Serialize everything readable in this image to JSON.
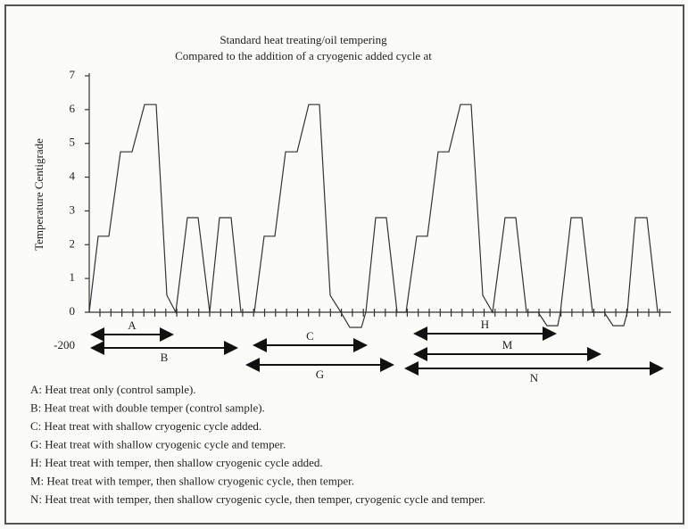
{
  "chart_data": {
    "type": "line",
    "title": "Standard heat treating/oil tempering",
    "subtitle": "Compared to the addition of a cryogenic added cycle at",
    "y_label": "Temperature Centigrade",
    "ylim": [
      0,
      7
    ],
    "yticks": [
      0,
      1,
      2,
      3,
      4,
      5,
      6,
      7
    ],
    "xlim": [
      0,
      65
    ],
    "annotation": "-200",
    "series": [
      {
        "color": "#333333",
        "x": [
          0,
          1,
          2.2,
          3.5,
          4.8,
          6.2,
          7.5,
          8.7,
          9.7,
          11,
          12.2,
          13.5,
          14.6,
          15.9,
          17,
          18.5,
          19.6,
          20.8,
          22,
          23.3,
          24.6,
          25.8,
          27,
          28.2,
          29.2,
          30.5,
          31,
          32.1,
          33.3,
          34.5,
          35.5,
          36.7,
          37.9,
          39.1,
          40.3,
          41.6,
          42.8,
          44.1,
          45.2,
          46.6,
          47.8,
          49,
          50.3,
          51.3,
          52.5,
          52.8,
          54,
          55.2,
          56.4,
          57.7,
          58.7,
          59.9,
          60.3,
          61.2,
          62.5,
          63.7
        ],
        "values": [
          0,
          2.25,
          2.25,
          4.75,
          4.75,
          6.15,
          6.15,
          0.5,
          0,
          2.8,
          2.8,
          0,
          2.8,
          2.8,
          0,
          0,
          2.25,
          2.25,
          4.75,
          4.75,
          6.15,
          6.15,
          0.5,
          0,
          -0.45,
          -0.45,
          0,
          2.8,
          2.8,
          0,
          0,
          2.25,
          2.25,
          4.75,
          4.75,
          6.15,
          6.15,
          0.5,
          0,
          2.8,
          2.8,
          0,
          0,
          -0.4,
          -0.4,
          0,
          2.8,
          2.8,
          0,
          0,
          -0.4,
          -0.4,
          0,
          2.8,
          2.8,
          0
        ]
      }
    ],
    "ranges": [
      {
        "label": "A",
        "start": 0.3,
        "end": 9.3
      },
      {
        "label": "B",
        "start": 0.3,
        "end": 16.5
      },
      {
        "label": "C",
        "start": 18.5,
        "end": 31
      },
      {
        "label": "G",
        "start": 17.7,
        "end": 34
      },
      {
        "label": "H",
        "start": 36.5,
        "end": 52.2
      },
      {
        "label": "M",
        "start": 36.5,
        "end": 57.2
      },
      {
        "label": "N",
        "start": 35.5,
        "end": 64.2
      }
    ],
    "notes": [
      "A: Heat treat only (control sample).",
      "B: Heat treat with double temper (control sample).",
      "C: Heat treat with shallow cryogenic cycle added.",
      "G: Heat treat with shallow cryogenic cycle and temper.",
      "H: Heat treat with temper, then shallow cryogenic cycle added.",
      "M: Heat treat with temper, then shallow cryogenic cycle, then temper.",
      "N: Heat treat with temper, then shallow cryogenic cycle, then temper, cryogenic cycle and temper."
    ]
  }
}
